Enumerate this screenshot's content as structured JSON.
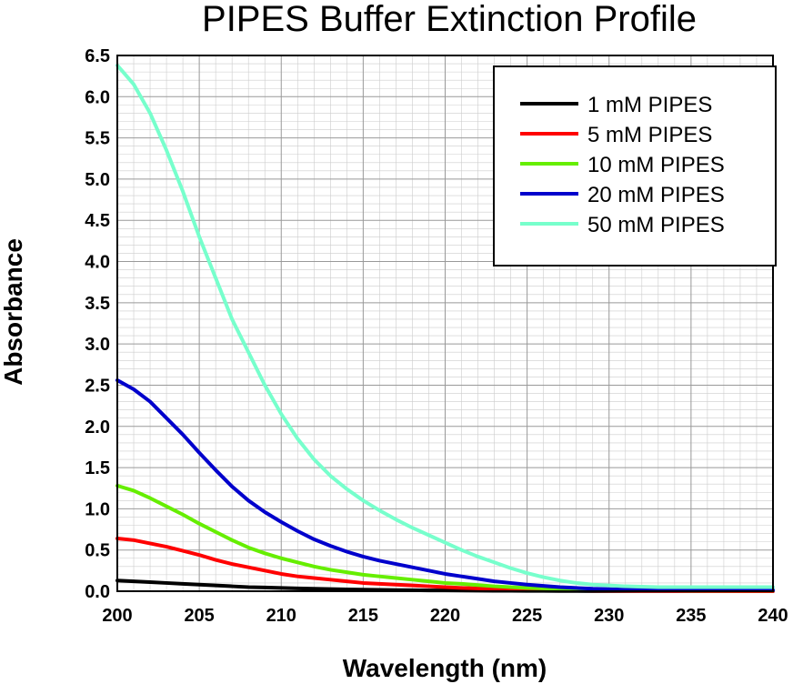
{
  "chart_data": {
    "type": "line",
    "title": "PIPES Buffer Extinction Profile",
    "xlabel": "Wavelength (nm)",
    "ylabel": "Absorbance",
    "xlim": [
      200,
      240
    ],
    "ylim": [
      0,
      6.5
    ],
    "xticks": [
      "200",
      "205",
      "210",
      "215",
      "220",
      "225",
      "230",
      "235",
      "240"
    ],
    "yticks": [
      "0.0",
      "0.5",
      "1.0",
      "1.5",
      "2.0",
      "2.5",
      "3.0",
      "3.5",
      "4.0",
      "4.5",
      "5.0",
      "5.5",
      "6.0",
      "6.5"
    ],
    "grid": true,
    "legend_position": "top-right",
    "x": [
      200,
      201,
      202,
      203,
      204,
      205,
      206,
      207,
      208,
      209,
      210,
      211,
      212,
      213,
      214,
      215,
      216,
      217,
      218,
      219,
      220,
      221,
      222,
      223,
      224,
      225,
      226,
      227,
      228,
      229,
      230,
      231,
      232,
      233,
      234,
      235,
      236,
      237,
      238,
      239,
      240
    ],
    "series": [
      {
        "name": "1 mM PIPES",
        "color": "#000000",
        "values": [
          0.13,
          0.12,
          0.11,
          0.1,
          0.09,
          0.08,
          0.07,
          0.06,
          0.05,
          0.045,
          0.04,
          0.035,
          0.03,
          0.026,
          0.022,
          0.019,
          0.016,
          0.014,
          0.012,
          0.01,
          0.009,
          0.008,
          0.007,
          0.006,
          0.005,
          0.004,
          0.004,
          0.003,
          0.003,
          0.002,
          0.002,
          0.002,
          0.001,
          0.001,
          0.001,
          0.001,
          0.001,
          0.001,
          0.001,
          0.001,
          0.001
        ]
      },
      {
        "name": "5 mM PIPES",
        "color": "#ff0000",
        "values": [
          0.64,
          0.62,
          0.58,
          0.54,
          0.49,
          0.44,
          0.38,
          0.33,
          0.29,
          0.25,
          0.21,
          0.18,
          0.16,
          0.14,
          0.12,
          0.1,
          0.09,
          0.08,
          0.07,
          0.06,
          0.05,
          0.04,
          0.035,
          0.03,
          0.025,
          0.02,
          0.017,
          0.014,
          0.012,
          0.01,
          0.008,
          0.007,
          0.006,
          0.005,
          0.004,
          0.004,
          0.003,
          0.003,
          0.002,
          0.002,
          0.002
        ]
      },
      {
        "name": "10 mM PIPES",
        "color": "#66ee00",
        "values": [
          1.28,
          1.22,
          1.13,
          1.03,
          0.93,
          0.82,
          0.72,
          0.62,
          0.53,
          0.46,
          0.4,
          0.35,
          0.3,
          0.26,
          0.23,
          0.2,
          0.18,
          0.16,
          0.14,
          0.12,
          0.1,
          0.09,
          0.075,
          0.06,
          0.05,
          0.04,
          0.035,
          0.03,
          0.025,
          0.02,
          0.018,
          0.015,
          0.013,
          0.012,
          0.011,
          0.01,
          0.01,
          0.01,
          0.01,
          0.01,
          0.01
        ]
      },
      {
        "name": "20 mM PIPES",
        "color": "#0000cc",
        "values": [
          2.56,
          2.45,
          2.3,
          2.1,
          1.9,
          1.68,
          1.47,
          1.27,
          1.1,
          0.96,
          0.84,
          0.73,
          0.63,
          0.55,
          0.48,
          0.42,
          0.37,
          0.33,
          0.29,
          0.25,
          0.21,
          0.18,
          0.15,
          0.12,
          0.1,
          0.08,
          0.065,
          0.05,
          0.04,
          0.03,
          0.025,
          0.02,
          0.018,
          0.016,
          0.014,
          0.013,
          0.012,
          0.012,
          0.012,
          0.012,
          0.012
        ]
      },
      {
        "name": "50 mM PIPES",
        "color": "#77ffcc",
        "values": [
          6.38,
          6.15,
          5.8,
          5.35,
          4.85,
          4.3,
          3.8,
          3.3,
          2.9,
          2.5,
          2.15,
          1.85,
          1.6,
          1.4,
          1.24,
          1.1,
          0.98,
          0.87,
          0.77,
          0.68,
          0.59,
          0.5,
          0.42,
          0.35,
          0.28,
          0.22,
          0.17,
          0.13,
          0.1,
          0.08,
          0.07,
          0.06,
          0.055,
          0.05,
          0.05,
          0.05,
          0.05,
          0.05,
          0.05,
          0.05,
          0.05
        ]
      }
    ]
  }
}
